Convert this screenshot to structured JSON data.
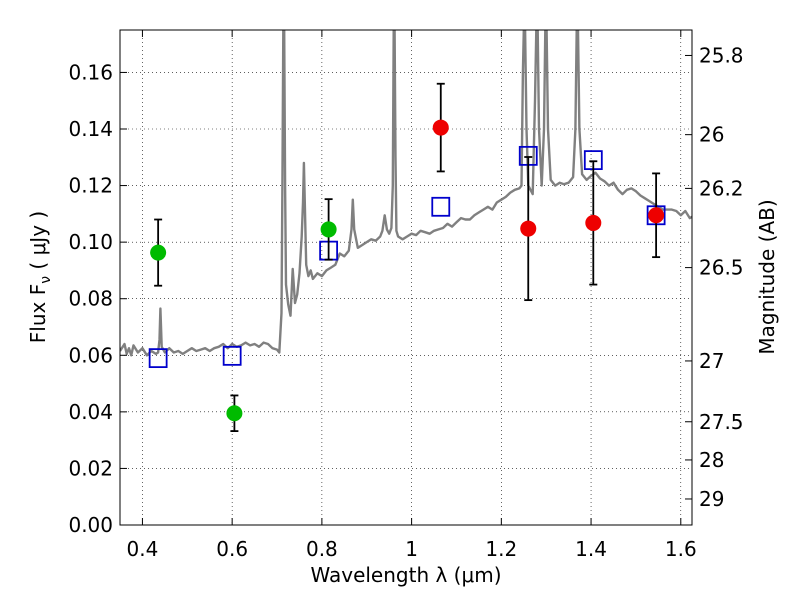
{
  "chart_data": {
    "type": "scatter",
    "title": "",
    "xlabel": "Wavelength  λ (μm)",
    "ylabel": "Flux  F",
    "ylabel_sub": "ν",
    "ylabel_unit": " ( μJy )",
    "ylabel_right": "Magnitude (AB)",
    "xlim": [
      0.35,
      1.625
    ],
    "ylim": [
      0.0,
      0.175
    ],
    "grid": true,
    "x_ticks": [
      {
        "value": 0.4,
        "label": "0.4"
      },
      {
        "value": 0.6,
        "label": "0.6"
      },
      {
        "value": 0.8,
        "label": "0.8"
      },
      {
        "value": 1.0,
        "label": "1"
      },
      {
        "value": 1.2,
        "label": "1.2"
      },
      {
        "value": 1.4,
        "label": "1.4"
      },
      {
        "value": 1.6,
        "label": "1.6"
      }
    ],
    "y_ticks": [
      {
        "value": 0.0,
        "label": "0.00"
      },
      {
        "value": 0.02,
        "label": "0.02"
      },
      {
        "value": 0.04,
        "label": "0.04"
      },
      {
        "value": 0.06,
        "label": "0.06"
      },
      {
        "value": 0.08,
        "label": "0.08"
      },
      {
        "value": 0.1,
        "label": "0.10"
      },
      {
        "value": 0.12,
        "label": "0.12"
      },
      {
        "value": 0.14,
        "label": "0.14"
      },
      {
        "value": 0.16,
        "label": "0.16"
      }
    ],
    "right_ticks": [
      {
        "flux": 0.166,
        "label": "25.8"
      },
      {
        "flux": 0.138,
        "label": "26"
      },
      {
        "flux": 0.119,
        "label": "26.2"
      },
      {
        "flux": 0.091,
        "label": "26.5"
      },
      {
        "flux": 0.058,
        "label": "27"
      },
      {
        "flux": 0.0365,
        "label": "27.5"
      },
      {
        "flux": 0.023,
        "label": "28"
      },
      {
        "flux": 0.0092,
        "label": "29"
      }
    ],
    "series": [
      {
        "name": "model_spectrum",
        "kind": "line",
        "color": "#808080",
        "points": [
          [
            0.35,
            0.0615
          ],
          [
            0.36,
            0.064
          ],
          [
            0.365,
            0.0605
          ],
          [
            0.37,
            0.0625
          ],
          [
            0.375,
            0.06
          ],
          [
            0.38,
            0.0635
          ],
          [
            0.39,
            0.061
          ],
          [
            0.4,
            0.0625
          ],
          [
            0.41,
            0.06
          ],
          [
            0.42,
            0.0615
          ],
          [
            0.43,
            0.0605
          ],
          [
            0.435,
            0.061
          ],
          [
            0.438,
            0.0655
          ],
          [
            0.44,
            0.0765
          ],
          [
            0.443,
            0.063
          ],
          [
            0.45,
            0.061
          ],
          [
            0.46,
            0.0625
          ],
          [
            0.47,
            0.061
          ],
          [
            0.48,
            0.0615
          ],
          [
            0.49,
            0.0605
          ],
          [
            0.5,
            0.0615
          ],
          [
            0.51,
            0.0625
          ],
          [
            0.52,
            0.0615
          ],
          [
            0.53,
            0.062
          ],
          [
            0.54,
            0.0625
          ],
          [
            0.55,
            0.0615
          ],
          [
            0.56,
            0.0625
          ],
          [
            0.57,
            0.063
          ],
          [
            0.58,
            0.064
          ],
          [
            0.59,
            0.0625
          ],
          [
            0.6,
            0.064
          ],
          [
            0.61,
            0.063
          ],
          [
            0.62,
            0.0635
          ],
          [
            0.63,
            0.0645
          ],
          [
            0.64,
            0.0635
          ],
          [
            0.65,
            0.064
          ],
          [
            0.66,
            0.063
          ],
          [
            0.67,
            0.0645
          ],
          [
            0.68,
            0.064
          ],
          [
            0.69,
            0.0625
          ],
          [
            0.7,
            0.062
          ],
          [
            0.705,
            0.061
          ],
          [
            0.71,
            0.075
          ],
          [
            0.712,
            0.12
          ],
          [
            0.714,
            0.175
          ],
          [
            0.716,
            0.175
          ],
          [
            0.718,
            0.12
          ],
          [
            0.72,
            0.085
          ],
          [
            0.725,
            0.078
          ],
          [
            0.73,
            0.074
          ],
          [
            0.735,
            0.0905
          ],
          [
            0.74,
            0.0785
          ],
          [
            0.745,
            0.0815
          ],
          [
            0.75,
            0.089
          ],
          [
            0.755,
            0.102
          ],
          [
            0.758,
            0.114
          ],
          [
            0.76,
            0.128
          ],
          [
            0.762,
            0.114
          ],
          [
            0.765,
            0.092
          ],
          [
            0.77,
            0.088
          ],
          [
            0.775,
            0.09
          ],
          [
            0.78,
            0.087
          ],
          [
            0.79,
            0.089
          ],
          [
            0.8,
            0.088
          ],
          [
            0.81,
            0.09
          ],
          [
            0.82,
            0.091
          ],
          [
            0.83,
            0.092
          ],
          [
            0.84,
            0.096
          ],
          [
            0.85,
            0.095
          ],
          [
            0.86,
            0.097
          ],
          [
            0.866,
            0.1045
          ],
          [
            0.869,
            0.115
          ],
          [
            0.872,
            0.1045
          ],
          [
            0.88,
            0.098
          ],
          [
            0.89,
            0.099
          ],
          [
            0.9,
            0.1
          ],
          [
            0.91,
            0.101
          ],
          [
            0.92,
            0.1005
          ],
          [
            0.93,
            0.102
          ],
          [
            0.935,
            0.104
          ],
          [
            0.94,
            0.1095
          ],
          [
            0.945,
            0.1045
          ],
          [
            0.95,
            0.103
          ],
          [
            0.955,
            0.105
          ],
          [
            0.958,
            0.12
          ],
          [
            0.96,
            0.175
          ],
          [
            0.962,
            0.175
          ],
          [
            0.964,
            0.13
          ],
          [
            0.966,
            0.104
          ],
          [
            0.97,
            0.102
          ],
          [
            0.98,
            0.101
          ],
          [
            0.99,
            0.102
          ],
          [
            1.0,
            0.103
          ],
          [
            1.01,
            0.1025
          ],
          [
            1.02,
            0.104
          ],
          [
            1.03,
            0.1035
          ],
          [
            1.04,
            0.103
          ],
          [
            1.05,
            0.104
          ],
          [
            1.06,
            0.1045
          ],
          [
            1.07,
            0.105
          ],
          [
            1.08,
            0.1065
          ],
          [
            1.09,
            0.1055
          ],
          [
            1.1,
            0.107
          ],
          [
            1.11,
            0.1085
          ],
          [
            1.12,
            0.108
          ],
          [
            1.13,
            0.108
          ],
          [
            1.14,
            0.1095
          ],
          [
            1.15,
            0.1105
          ],
          [
            1.16,
            0.1115
          ],
          [
            1.17,
            0.1125
          ],
          [
            1.18,
            0.1115
          ],
          [
            1.19,
            0.114
          ],
          [
            1.2,
            0.115
          ],
          [
            1.21,
            0.116
          ],
          [
            1.22,
            0.1175
          ],
          [
            1.23,
            0.1185
          ],
          [
            1.24,
            0.119
          ],
          [
            1.245,
            0.12
          ],
          [
            1.248,
            0.16
          ],
          [
            1.25,
            0.175
          ],
          [
            1.253,
            0.175
          ],
          [
            1.256,
            0.14
          ],
          [
            1.26,
            0.12
          ],
          [
            1.27,
            0.117
          ],
          [
            1.275,
            0.15
          ],
          [
            1.278,
            0.175
          ],
          [
            1.281,
            0.175
          ],
          [
            1.284,
            0.14
          ],
          [
            1.29,
            0.12
          ],
          [
            1.295,
            0.14
          ],
          [
            1.298,
            0.175
          ],
          [
            1.301,
            0.175
          ],
          [
            1.304,
            0.14
          ],
          [
            1.31,
            0.122
          ],
          [
            1.32,
            0.12
          ],
          [
            1.33,
            0.121
          ],
          [
            1.34,
            0.1205
          ],
          [
            1.35,
            0.121
          ],
          [
            1.36,
            0.123
          ],
          [
            1.365,
            0.14
          ],
          [
            1.368,
            0.175
          ],
          [
            1.371,
            0.175
          ],
          [
            1.374,
            0.14
          ],
          [
            1.38,
            0.124
          ],
          [
            1.39,
            0.122
          ],
          [
            1.4,
            0.1235
          ],
          [
            1.41,
            0.1245
          ],
          [
            1.42,
            0.1225
          ],
          [
            1.43,
            0.1215
          ],
          [
            1.44,
            0.12
          ],
          [
            1.45,
            0.121
          ],
          [
            1.46,
            0.1185
          ],
          [
            1.47,
            0.117
          ],
          [
            1.48,
            0.1185
          ],
          [
            1.49,
            0.119
          ],
          [
            1.5,
            0.118
          ],
          [
            1.51,
            0.1165
          ],
          [
            1.52,
            0.1155
          ],
          [
            1.53,
            0.1145
          ],
          [
            1.54,
            0.1135
          ],
          [
            1.55,
            0.1125
          ],
          [
            1.56,
            0.1115
          ],
          [
            1.57,
            0.1115
          ],
          [
            1.58,
            0.1115
          ],
          [
            1.59,
            0.111
          ],
          [
            1.6,
            0.1095
          ],
          [
            1.61,
            0.111
          ],
          [
            1.62,
            0.1085
          ],
          [
            1.625,
            0.109
          ]
        ]
      },
      {
        "name": "model_photometry",
        "kind": "open_square",
        "color": "#0000cc",
        "points": [
          [
            0.435,
            0.059
          ],
          [
            0.6,
            0.0598
          ],
          [
            0.815,
            0.097
          ],
          [
            1.065,
            0.1125
          ],
          [
            1.26,
            0.1305
          ],
          [
            1.405,
            0.129
          ],
          [
            1.545,
            0.1095
          ]
        ]
      },
      {
        "name": "observed_optical",
        "kind": "filled_circle",
        "color": "#00bb00",
        "points": [
          {
            "x": 0.435,
            "y": 0.0963,
            "err_lo": 0.0117,
            "err_hi": 0.0117
          },
          {
            "x": 0.605,
            "y": 0.0395,
            "err_lo": 0.0063,
            "err_hi": 0.0063
          },
          {
            "x": 0.815,
            "y": 0.1045,
            "err_lo": 0.0107,
            "err_hi": 0.0107
          }
        ]
      },
      {
        "name": "observed_infrared",
        "kind": "filled_circle",
        "color": "#ee0000",
        "points": [
          {
            "x": 1.065,
            "y": 0.1405,
            "err_lo": 0.0155,
            "err_hi": 0.0155
          },
          {
            "x": 1.26,
            "y": 0.1048,
            "err_lo": 0.0253,
            "err_hi": 0.0253
          },
          {
            "x": 1.405,
            "y": 0.1068,
            "err_lo": 0.0218,
            "err_hi": 0.0218
          },
          {
            "x": 1.545,
            "y": 0.1095,
            "err_lo": 0.0148,
            "err_hi": 0.0148
          }
        ]
      }
    ]
  }
}
